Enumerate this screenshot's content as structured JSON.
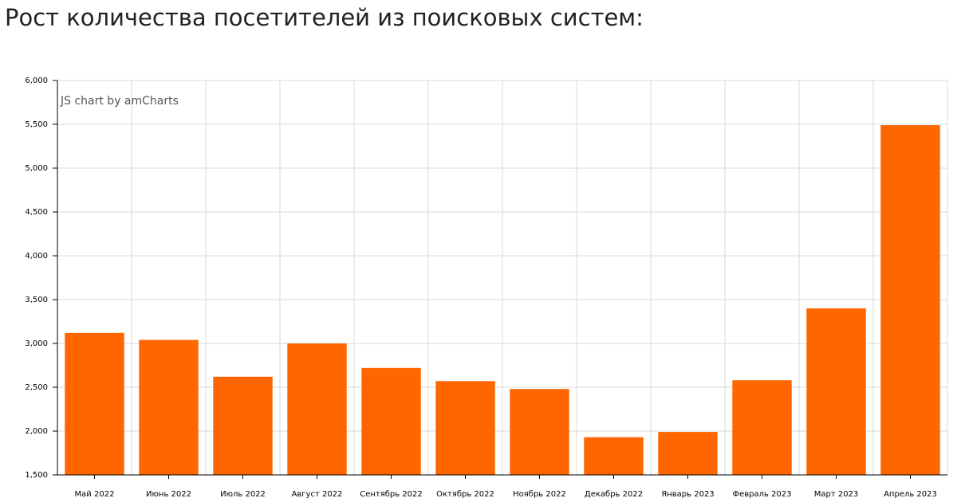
{
  "chart_data": {
    "type": "bar",
    "title": "Рост количества посетителей из поисковых систем:",
    "credit": "JS chart by amCharts",
    "categories": [
      "Май 2022",
      "Июнь 2022",
      "Июль 2022",
      "Август 2022",
      "Сентябрь 2022",
      "Октябрь 2022",
      "Ноябрь 2022",
      "Декабрь 2022",
      "Январь 2023",
      "Февраль 2023",
      "Март 2023",
      "Апрель 2023"
    ],
    "values": [
      3120,
      3040,
      2620,
      3000,
      2720,
      2570,
      2480,
      1930,
      1990,
      2580,
      3400,
      5490
    ],
    "color": "#ff6600",
    "ylim": [
      1500,
      6000
    ],
    "yticks": [
      {
        "value": 1500,
        "label": "1,500"
      },
      {
        "value": 2000,
        "label": "2,000"
      },
      {
        "value": 2500,
        "label": "2,500"
      },
      {
        "value": 3000,
        "label": "3,000"
      },
      {
        "value": 3500,
        "label": "3,500"
      },
      {
        "value": 4000,
        "label": "4,000"
      },
      {
        "value": 4500,
        "label": "4,500"
      },
      {
        "value": 5000,
        "label": "5,000"
      },
      {
        "value": 5500,
        "label": "5,500"
      },
      {
        "value": 6000,
        "label": "6,000"
      }
    ],
    "grid": true
  }
}
